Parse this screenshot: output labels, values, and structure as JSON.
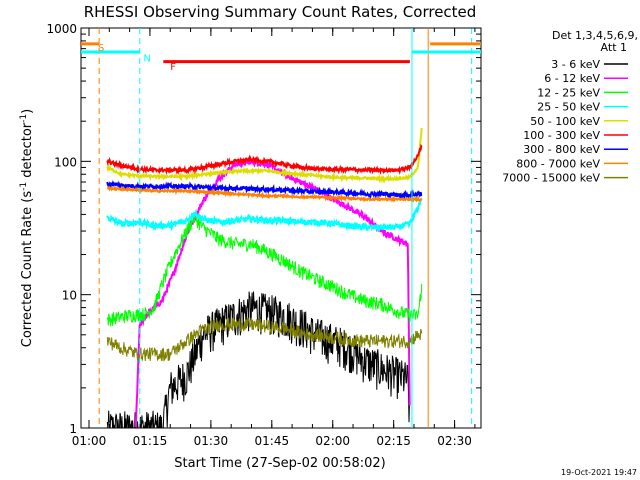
{
  "chart_data": {
    "type": "line",
    "title": "RHESSI Observing Summary Count Rates, Corrected",
    "xlabel": "Start Time (27-Sep-02 00:58:02)",
    "ylabel_main": "Corrected Count Rate (s",
    "ylabel_sup1": "-1",
    "ylabel_mid": " detector",
    "ylabel_sup2": "-1",
    "ylabel_end": ")",
    "y_scale": "log",
    "ylim": [
      1,
      1000
    ],
    "xlim_minutes": [
      58.03,
      156.5
    ],
    "x_ticks": [
      {
        "m": 60,
        "label": "01:00"
      },
      {
        "m": 75,
        "label": "01:15"
      },
      {
        "m": 90,
        "label": "01:30"
      },
      {
        "m": 105,
        "label": "01:45"
      },
      {
        "m": 120,
        "label": "02:00"
      },
      {
        "m": 135,
        "label": "02:15"
      },
      {
        "m": 150,
        "label": "02:30"
      }
    ],
    "y_ticks": [
      {
        "v": 1,
        "label": "1"
      },
      {
        "v": 10,
        "label": "10"
      },
      {
        "v": 100,
        "label": "100"
      },
      {
        "v": 1000,
        "label": "1000"
      }
    ],
    "legend": {
      "header_line1": "Det 1,3,4,5,6,9,",
      "header_line2": "Att 1",
      "placement": "right"
    },
    "series": [
      {
        "name": "3 - 6 keV",
        "color": "#000000",
        "noise": 0.35,
        "points": [
          [
            64.5,
            1
          ],
          [
            78,
            1
          ],
          [
            80,
            2
          ],
          [
            84,
            2.5
          ],
          [
            86,
            3.5
          ],
          [
            88,
            5
          ],
          [
            92,
            6
          ],
          [
            96,
            7
          ],
          [
            100,
            8
          ],
          [
            104,
            7.5
          ],
          [
            108,
            7
          ],
          [
            112,
            6
          ],
          [
            116,
            5
          ],
          [
            120,
            4.5
          ],
          [
            124,
            4
          ],
          [
            128,
            3.2
          ],
          [
            132,
            2.8
          ],
          [
            136,
            2.5
          ],
          [
            138.5,
            2.3
          ],
          [
            139,
            1
          ]
        ]
      },
      {
        "name": "6 - 12 keV",
        "color": "#ff00ff",
        "noise": 0.05,
        "points": [
          [
            71.5,
            1
          ],
          [
            72.5,
            6
          ],
          [
            75,
            7.5
          ],
          [
            78,
            9
          ],
          [
            81,
            15
          ],
          [
            84,
            28
          ],
          [
            88,
            50
          ],
          [
            92,
            75
          ],
          [
            96,
            95
          ],
          [
            100,
            100
          ],
          [
            104,
            95
          ],
          [
            108,
            80
          ],
          [
            112,
            70
          ],
          [
            116,
            62
          ],
          [
            120,
            52
          ],
          [
            124,
            45
          ],
          [
            128,
            38
          ],
          [
            132,
            30
          ],
          [
            136,
            26
          ],
          [
            138.5,
            24
          ],
          [
            139,
            1
          ]
        ]
      },
      {
        "name": "12 - 25 keV",
        "color": "#00ff00",
        "noise": 0.12,
        "points": [
          [
            64.5,
            6.5
          ],
          [
            70,
            7
          ],
          [
            74,
            7.2
          ],
          [
            76,
            8
          ],
          [
            78,
            12
          ],
          [
            81,
            20
          ],
          [
            84,
            30
          ],
          [
            86,
            38
          ],
          [
            88,
            32
          ],
          [
            92,
            26
          ],
          [
            96,
            24
          ],
          [
            100,
            24
          ],
          [
            104,
            21
          ],
          [
            108,
            18
          ],
          [
            112,
            15
          ],
          [
            116,
            13
          ],
          [
            120,
            11.5
          ],
          [
            124,
            10
          ],
          [
            128,
            9
          ],
          [
            132,
            8.5
          ],
          [
            136,
            7.5
          ],
          [
            139,
            7
          ],
          [
            141,
            7
          ],
          [
            142,
            12
          ]
        ]
      },
      {
        "name": "25 - 50 keV",
        "color": "#00ffff",
        "noise": 0.05,
        "points": [
          [
            64.5,
            38
          ],
          [
            68,
            34
          ],
          [
            72,
            35
          ],
          [
            76,
            33
          ],
          [
            80,
            33
          ],
          [
            84,
            36
          ],
          [
            86,
            41
          ],
          [
            88,
            37
          ],
          [
            92,
            35
          ],
          [
            96,
            36
          ],
          [
            100,
            37
          ],
          [
            104,
            36
          ],
          [
            108,
            36
          ],
          [
            112,
            35
          ],
          [
            116,
            35
          ],
          [
            120,
            34
          ],
          [
            124,
            33
          ],
          [
            128,
            32
          ],
          [
            132,
            32
          ],
          [
            136,
            32
          ],
          [
            139,
            34
          ],
          [
            141,
            45
          ],
          [
            142,
            55
          ]
        ]
      },
      {
        "name": "50 - 100 keV",
        "color": "#dddd00",
        "noise": 0.02,
        "points": [
          [
            64.5,
            90
          ],
          [
            68,
            80
          ],
          [
            72,
            78
          ],
          [
            76,
            77
          ],
          [
            80,
            77
          ],
          [
            84,
            77
          ],
          [
            88,
            80
          ],
          [
            92,
            82
          ],
          [
            96,
            84
          ],
          [
            100,
            85
          ],
          [
            104,
            85
          ],
          [
            108,
            82
          ],
          [
            112,
            80
          ],
          [
            116,
            78
          ],
          [
            120,
            76
          ],
          [
            124,
            75
          ],
          [
            128,
            75
          ],
          [
            132,
            74
          ],
          [
            136,
            74
          ],
          [
            139,
            76
          ],
          [
            141,
            90
          ],
          [
            142,
            190
          ]
        ]
      },
      {
        "name": "100 - 300 keV",
        "color": "#ff0000",
        "noise": 0.03,
        "points": [
          [
            64.5,
            100
          ],
          [
            68,
            93
          ],
          [
            72,
            88
          ],
          [
            76,
            86
          ],
          [
            80,
            86
          ],
          [
            84,
            86
          ],
          [
            88,
            90
          ],
          [
            92,
            95
          ],
          [
            96,
            100
          ],
          [
            100,
            103
          ],
          [
            104,
            100
          ],
          [
            108,
            95
          ],
          [
            112,
            90
          ],
          [
            116,
            88
          ],
          [
            120,
            87
          ],
          [
            124,
            87
          ],
          [
            128,
            86
          ],
          [
            132,
            86
          ],
          [
            136,
            86
          ],
          [
            139,
            90
          ],
          [
            141,
            110
          ],
          [
            142,
            135
          ]
        ]
      },
      {
        "name": "300 - 800 keV",
        "color": "#0000ff",
        "noise": 0.035,
        "points": [
          [
            64.5,
            68
          ],
          [
            68,
            66
          ],
          [
            72,
            65
          ],
          [
            76,
            65
          ],
          [
            80,
            65
          ],
          [
            84,
            65
          ],
          [
            88,
            64
          ],
          [
            92,
            63
          ],
          [
            96,
            63
          ],
          [
            100,
            62
          ],
          [
            104,
            62
          ],
          [
            108,
            61
          ],
          [
            112,
            60
          ],
          [
            116,
            59
          ],
          [
            120,
            59
          ],
          [
            124,
            58
          ],
          [
            128,
            57
          ],
          [
            132,
            57
          ],
          [
            136,
            56
          ],
          [
            139,
            56
          ],
          [
            141,
            57
          ],
          [
            142,
            57
          ]
        ]
      },
      {
        "name": "800 - 7000 keV",
        "color": "#ff8000",
        "noise": 0.015,
        "points": [
          [
            64.5,
            63
          ],
          [
            68,
            62
          ],
          [
            72,
            61
          ],
          [
            76,
            60
          ],
          [
            80,
            60
          ],
          [
            84,
            60
          ],
          [
            88,
            59
          ],
          [
            92,
            58
          ],
          [
            96,
            57
          ],
          [
            100,
            56
          ],
          [
            104,
            55
          ],
          [
            108,
            55
          ],
          [
            112,
            54
          ],
          [
            116,
            54
          ],
          [
            120,
            53
          ],
          [
            124,
            53
          ],
          [
            128,
            52
          ],
          [
            132,
            52
          ],
          [
            136,
            52
          ],
          [
            139,
            52
          ],
          [
            141,
            52
          ],
          [
            142,
            51
          ]
        ]
      },
      {
        "name": "7000 - 15000 keV",
        "color": "#808000",
        "noise": 0.12,
        "points": [
          [
            64.5,
            4.5
          ],
          [
            68,
            4
          ],
          [
            72,
            3.6
          ],
          [
            76,
            3.6
          ],
          [
            80,
            3.6
          ],
          [
            84,
            4.5
          ],
          [
            88,
            5.5
          ],
          [
            92,
            6
          ],
          [
            96,
            6
          ],
          [
            100,
            6
          ],
          [
            104,
            5.8
          ],
          [
            108,
            5.6
          ],
          [
            112,
            5.2
          ],
          [
            116,
            5
          ],
          [
            120,
            4.8
          ],
          [
            124,
            4.6
          ],
          [
            128,
            4.5
          ],
          [
            132,
            4.5
          ],
          [
            136,
            4.5
          ],
          [
            139,
            4.5
          ],
          [
            141,
            5
          ],
          [
            142,
            5
          ]
        ]
      }
    ],
    "annotations": [
      {
        "label": "S",
        "m": 62.2,
        "v": 720,
        "color": "#ff8000"
      },
      {
        "label": "N",
        "m": 73.4,
        "v": 600,
        "color": "#00ffff"
      },
      {
        "label": "F",
        "m": 80.0,
        "v": 520,
        "color": "#ff0000"
      }
    ],
    "state_bars": [
      {
        "name": "saa-bar-1",
        "m0": 58.03,
        "m1": 62.5,
        "v": 760,
        "color": "#ff8000"
      },
      {
        "name": "saa-bar-2",
        "m0": 144,
        "m1": 156.5,
        "v": 760,
        "color": "#ff8000"
      },
      {
        "name": "night-bar-1",
        "m0": 58.03,
        "m1": 72.5,
        "v": 660,
        "color": "#00ffff"
      },
      {
        "name": "night-bar-2",
        "m0": 139.5,
        "m1": 156.5,
        "v": 660,
        "color": "#00ffff"
      },
      {
        "name": "flare-bar",
        "m0": 78.3,
        "m1": 139,
        "v": 560,
        "color": "#ff0000"
      }
    ],
    "vlines": [
      {
        "name": "saa-start-line",
        "m": 62.5,
        "color": "#ff8000",
        "dash": true
      },
      {
        "name": "night-start-line",
        "m": 72.5,
        "color": "#00ffff",
        "dash": true
      },
      {
        "name": "night-end-line",
        "m": 139.5,
        "color": "#00ffff",
        "dash": false
      },
      {
        "name": "saa-end-line",
        "m": 143.5,
        "color": "#ff8000",
        "dash": false
      },
      {
        "name": "saa-end-line-2",
        "m": 154.2,
        "color": "#00ffff",
        "dash": true
      }
    ]
  },
  "footer": {
    "timestamp": "19-Oct-2021 19:47"
  }
}
